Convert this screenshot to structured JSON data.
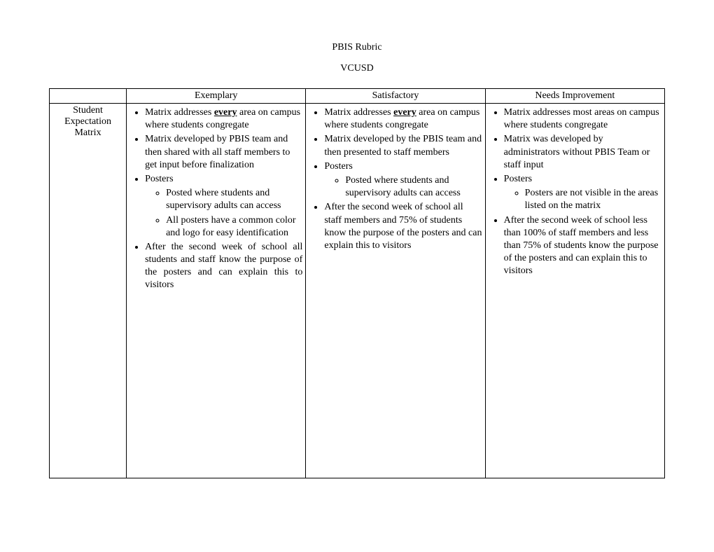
{
  "title": "PBIS Rubric",
  "subtitle": "VCUSD",
  "headers": {
    "c0": "",
    "c1": "Exemplary",
    "c2": "Satisfactory",
    "c3": "Needs Improvement"
  },
  "row": {
    "label_l1": "Student",
    "label_l2": "Expectation",
    "label_l3": "Matrix",
    "exemplary": {
      "b1a": "Matrix addresses ",
      "b1_every": "every",
      "b1b": " area on campus where students congregate",
      "b2": "Matrix developed by PBIS team and then shared with all staff members to get input before finalization",
      "b3": "Posters",
      "b3s1": "Posted where students and supervisory adults can access",
      "b3s2": "All posters have a common color and logo for easy identification",
      "b4": "After the second week of school all students and staff know the purpose of the posters and can explain this to visitors"
    },
    "satisfactory": {
      "b1a": "Matrix addresses ",
      "b1_every": "every",
      "b1b": " area on campus where students congregate",
      "b2": "Matrix developed by the PBIS team and then presented to staff members",
      "b3": "Posters",
      "b3s1": "Posted where students and supervisory adults can access",
      "b4": "After the second week of school all staff members and 75% of students know the purpose of the posters and can explain this to visitors"
    },
    "needs": {
      "b1": "Matrix addresses most areas on campus where students congregate",
      "b2": "Matrix was developed by administrators without PBIS Team or staff input",
      "b3": "Posters",
      "b3s1": "Posters are not visible in the areas listed on the matrix",
      "b4": "After the second week of school less than 100% of staff members and less than 75% of students know the purpose of the posters and can explain this to visitors"
    }
  }
}
